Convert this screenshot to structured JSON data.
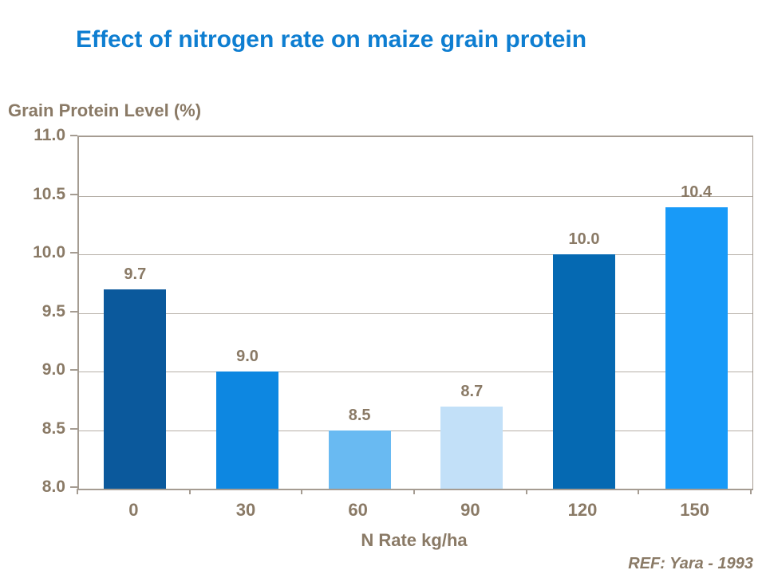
{
  "slide": {
    "ref": "REF: Yara - 1993"
  },
  "chart_data": {
    "type": "bar",
    "title": "Effect of nitrogen rate on maize grain protein",
    "ylabel": "Grain Protein Level (%)",
    "xlabel": "N Rate kg/ha",
    "categories": [
      "0",
      "30",
      "60",
      "90",
      "120",
      "150"
    ],
    "values": [
      9.7,
      9.0,
      8.5,
      8.7,
      10.0,
      10.4
    ],
    "value_labels": [
      "9.7",
      "9.0",
      "8.5",
      "8.7",
      "10.0",
      "10.4"
    ],
    "bar_colors": [
      "#0b599c",
      "#0d87e1",
      "#69baf2",
      "#c2e0f8",
      "#0569b2",
      "#189af8"
    ],
    "ylim": [
      8.0,
      11.0
    ],
    "ytick_step": 0.5,
    "ytick_labels": [
      "8.0",
      "8.5",
      "9.0",
      "9.5",
      "10.0",
      "10.5",
      "11.0"
    ],
    "grid": true,
    "legend": "none",
    "colors": {
      "title": "#0e7ed1",
      "text": "#8a7a66",
      "axis": "#a59c92",
      "grid": "#b6afa7",
      "background": "#ffffff"
    }
  }
}
